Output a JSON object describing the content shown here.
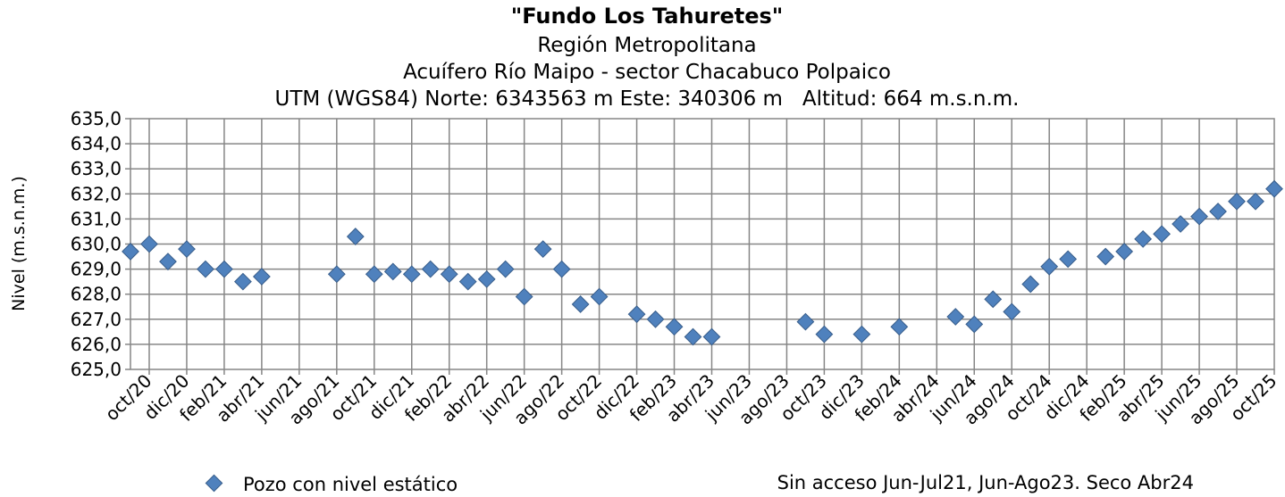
{
  "chart_data": {
    "type": "scatter",
    "title": "\"Fundo Los Tahuretes\"",
    "subtitle_lines": [
      "Región Metropolitana",
      "Acuífero Río Maipo - sector Chacabuco Polpaico",
      "UTM (WGS84) Norte: 6343563 m Este: 340306 m   Altitud: 664 m.s.n.m."
    ],
    "xlabel": "",
    "ylabel": "Nivel (m.s.n.m.)",
    "ylim": [
      625,
      635
    ],
    "y_ticks": [
      "625,0",
      "626,0",
      "627,0",
      "628,0",
      "629,0",
      "630,0",
      "631,0",
      "632,0",
      "633,0",
      "634,0",
      "635,0"
    ],
    "x_tick_labels": [
      "oct/20",
      "dic/20",
      "feb/21",
      "abr/21",
      "jun/21",
      "ago/21",
      "oct/21",
      "dic/21",
      "feb/22",
      "abr/22",
      "jun/22",
      "ago/22",
      "oct/22",
      "dic/22",
      "feb/23",
      "abr/23",
      "jun/23",
      "ago/23",
      "oct/23",
      "dic/23",
      "feb/24",
      "abr/24",
      "jun/24",
      "ago/24",
      "oct/24",
      "dic/24",
      "feb/25",
      "abr/25",
      "jun/25",
      "ago/25",
      "oct/25"
    ],
    "grid": true,
    "legend": {
      "position": "bottom-left",
      "entries": [
        "Pozo con nivel estático"
      ]
    },
    "note": "Sin acceso Jun-Jul21, Jun-Ago23. Seco Abr24",
    "marker_color": "#4F81BD",
    "marker_edge_color": "#385D8A",
    "series": [
      {
        "name": "Pozo con nivel estático",
        "points": [
          {
            "x": "sep/20",
            "y": 629.7
          },
          {
            "x": "oct/20",
            "y": 630.0
          },
          {
            "x": "nov/20",
            "y": 629.3
          },
          {
            "x": "dic/20",
            "y": 629.8
          },
          {
            "x": "ene/21",
            "y": 629.0
          },
          {
            "x": "feb/21",
            "y": 629.0
          },
          {
            "x": "mar/21",
            "y": 628.5
          },
          {
            "x": "abr/21",
            "y": 628.7
          },
          {
            "x": "ago/21",
            "y": 628.8
          },
          {
            "x": "sep/21",
            "y": 630.3
          },
          {
            "x": "oct/21",
            "y": 628.8
          },
          {
            "x": "nov/21",
            "y": 628.9
          },
          {
            "x": "dic/21",
            "y": 628.8
          },
          {
            "x": "ene/22",
            "y": 629.0
          },
          {
            "x": "feb/22",
            "y": 628.8
          },
          {
            "x": "mar/22",
            "y": 628.5
          },
          {
            "x": "abr/22",
            "y": 628.6
          },
          {
            "x": "may/22",
            "y": 629.0
          },
          {
            "x": "jun/22",
            "y": 627.9
          },
          {
            "x": "jul/22",
            "y": 629.8
          },
          {
            "x": "ago/22",
            "y": 629.0
          },
          {
            "x": "sep/22",
            "y": 627.6
          },
          {
            "x": "oct/22",
            "y": 627.9
          },
          {
            "x": "dic/22",
            "y": 627.2
          },
          {
            "x": "ene/23",
            "y": 627.0
          },
          {
            "x": "feb/23",
            "y": 626.7
          },
          {
            "x": "mar/23",
            "y": 626.3
          },
          {
            "x": "abr/23",
            "y": 626.3
          },
          {
            "x": "sep/23",
            "y": 626.9
          },
          {
            "x": "oct/23",
            "y": 626.4
          },
          {
            "x": "dic/23",
            "y": 626.4
          },
          {
            "x": "feb/24",
            "y": 626.7
          },
          {
            "x": "may/24",
            "y": 627.1
          },
          {
            "x": "jun/24",
            "y": 626.8
          },
          {
            "x": "jul/24",
            "y": 627.8
          },
          {
            "x": "ago/24",
            "y": 627.3
          },
          {
            "x": "sep/24",
            "y": 628.4
          },
          {
            "x": "oct/24",
            "y": 629.1
          },
          {
            "x": "nov/24",
            "y": 629.4
          },
          {
            "x": "ene/25",
            "y": 629.5
          },
          {
            "x": "feb/25",
            "y": 629.7
          },
          {
            "x": "mar/25",
            "y": 630.2
          },
          {
            "x": "abr/25",
            "y": 630.4
          },
          {
            "x": "may/25",
            "y": 630.8
          },
          {
            "x": "jun/25",
            "y": 631.1
          },
          {
            "x": "jul/25",
            "y": 631.3
          },
          {
            "x": "ago/25",
            "y": 631.7
          },
          {
            "x": "sep/25",
            "y": 631.7
          },
          {
            "x": "oct/25",
            "y": 632.2
          }
        ]
      }
    ]
  }
}
